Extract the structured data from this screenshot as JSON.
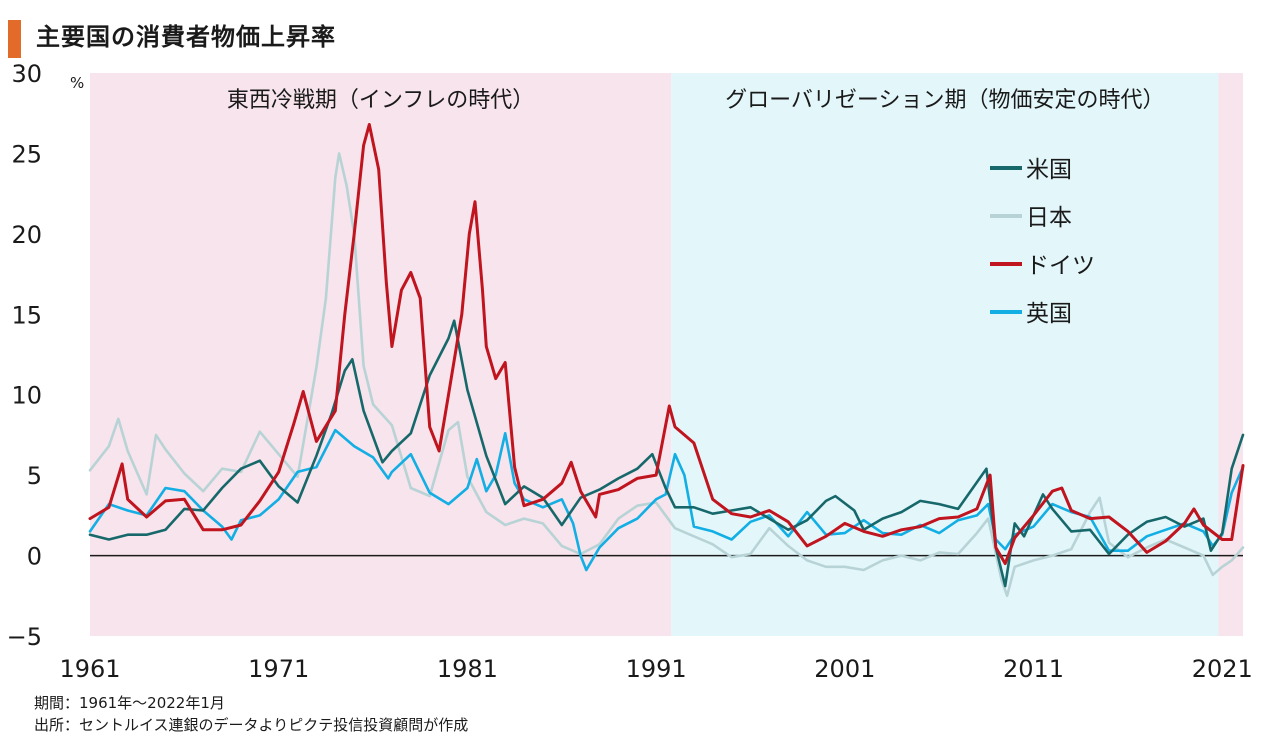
{
  "title": "主要国の消費者物価上昇率",
  "footnotes": {
    "period": "期間：1961年～2022年1月",
    "source": "出所：セントルイス連銀のデータよりピクテ投信投資顧問が作成"
  },
  "colors": {
    "title_accent": "#e26b2a",
    "cold_war_bg": "#f7e4ec",
    "globalization_bg": "#e3f7fb",
    "us": "#17686b",
    "japan": "#b8d3d6",
    "germany": "#c0141e",
    "uk": "#12aee4",
    "zero_line": "#1a1a1a"
  },
  "chart_data": {
    "type": "line",
    "title": "主要国の消費者物価上昇率",
    "ylabel": "%",
    "xlabel": "",
    "ylim": [
      -5,
      30
    ],
    "xlim": [
      1961,
      2022.1
    ],
    "yticks": [
      30,
      25,
      20,
      15,
      10,
      5,
      0,
      -5
    ],
    "ytick_labels": [
      "30",
      "25",
      "20",
      "15",
      "10",
      "5",
      "0",
      "−5"
    ],
    "xticks": [
      1961,
      1971,
      1981,
      1991,
      2001,
      2011,
      2021
    ],
    "xtick_labels": [
      "1961",
      "1971",
      "1981",
      "1991",
      "2001",
      "2011",
      "2021"
    ],
    "grid": false,
    "legend_position": "top-right",
    "periods": [
      {
        "label": "東西冷戦期（インフレの時代）",
        "start": 1961,
        "end": 1991.8,
        "color": "#f7e4ec"
      },
      {
        "label": "グローバリゼーション期（物価安定の時代）",
        "start": 1991.8,
        "end": 2020.8,
        "color": "#e3f7fb"
      },
      {
        "label": "",
        "start": 2020.8,
        "end": 2022.1,
        "color": "#f7e4ec"
      }
    ],
    "series": [
      {
        "name": "米国",
        "color": "#17686b",
        "points": [
          [
            1961,
            1.3
          ],
          [
            1962,
            1.0
          ],
          [
            1963,
            1.3
          ],
          [
            1964,
            1.3
          ],
          [
            1965,
            1.6
          ],
          [
            1966,
            2.9
          ],
          [
            1967,
            2.8
          ],
          [
            1968,
            4.2
          ],
          [
            1969,
            5.4
          ],
          [
            1970,
            5.9
          ],
          [
            1971,
            4.3
          ],
          [
            1972,
            3.3
          ],
          [
            1973,
            6.2
          ],
          [
            1973.8,
            8.8
          ],
          [
            1974.5,
            11.5
          ],
          [
            1974.9,
            12.2
          ],
          [
            1975.5,
            9.0
          ],
          [
            1976.5,
            5.8
          ],
          [
            1977,
            6.5
          ],
          [
            1978,
            7.6
          ],
          [
            1979,
            11.2
          ],
          [
            1980,
            13.5
          ],
          [
            1980.3,
            14.6
          ],
          [
            1981,
            10.3
          ],
          [
            1982,
            6.2
          ],
          [
            1983,
            3.2
          ],
          [
            1984,
            4.3
          ],
          [
            1985,
            3.6
          ],
          [
            1986,
            1.9
          ],
          [
            1987,
            3.6
          ],
          [
            1988,
            4.1
          ],
          [
            1989,
            4.8
          ],
          [
            1990,
            5.4
          ],
          [
            1990.8,
            6.3
          ],
          [
            1991.5,
            4.2
          ],
          [
            1992,
            3.0
          ],
          [
            1993,
            3.0
          ],
          [
            1994,
            2.6
          ],
          [
            1995,
            2.8
          ],
          [
            1996,
            3.0
          ],
          [
            1997,
            2.3
          ],
          [
            1998,
            1.6
          ],
          [
            1999,
            2.2
          ],
          [
            2000,
            3.4
          ],
          [
            2000.5,
            3.7
          ],
          [
            2001.5,
            2.8
          ],
          [
            2002,
            1.6
          ],
          [
            2003,
            2.3
          ],
          [
            2004,
            2.7
          ],
          [
            2005,
            3.4
          ],
          [
            2006,
            3.2
          ],
          [
            2007,
            2.9
          ],
          [
            2008.5,
            5.4
          ],
          [
            2009,
            0.5
          ],
          [
            2009.5,
            -1.9
          ],
          [
            2010,
            2.0
          ],
          [
            2010.5,
            1.2
          ],
          [
            2011.5,
            3.8
          ],
          [
            2012,
            2.9
          ],
          [
            2013,
            1.5
          ],
          [
            2014,
            1.6
          ],
          [
            2015,
            0.1
          ],
          [
            2016,
            1.3
          ],
          [
            2017,
            2.1
          ],
          [
            2018,
            2.4
          ],
          [
            2019,
            1.8
          ],
          [
            2020,
            2.3
          ],
          [
            2020.4,
            0.3
          ],
          [
            2021,
            1.4
          ],
          [
            2021.5,
            5.4
          ],
          [
            2022.1,
            7.5
          ]
        ]
      },
      {
        "name": "日本",
        "color": "#b8d3d6",
        "points": [
          [
            1961,
            5.3
          ],
          [
            1962,
            6.8
          ],
          [
            1962.5,
            8.5
          ],
          [
            1963,
            6.5
          ],
          [
            1964,
            3.8
          ],
          [
            1964.5,
            7.5
          ],
          [
            1965,
            6.6
          ],
          [
            1966,
            5.1
          ],
          [
            1967,
            4.0
          ],
          [
            1968,
            5.4
          ],
          [
            1969,
            5.2
          ],
          [
            1970,
            7.7
          ],
          [
            1971,
            6.3
          ],
          [
            1972,
            4.9
          ],
          [
            1973,
            11.7
          ],
          [
            1973.5,
            16.0
          ],
          [
            1974,
            23.5
          ],
          [
            1974.2,
            25.0
          ],
          [
            1974.6,
            23.0
          ],
          [
            1975,
            20.0
          ],
          [
            1975.5,
            11.8
          ],
          [
            1976,
            9.4
          ],
          [
            1977,
            8.1
          ],
          [
            1978,
            4.2
          ],
          [
            1979,
            3.7
          ],
          [
            1980,
            7.8
          ],
          [
            1980.5,
            8.3
          ],
          [
            1981,
            4.9
          ],
          [
            1982,
            2.7
          ],
          [
            1983,
            1.9
          ],
          [
            1984,
            2.3
          ],
          [
            1985,
            2.0
          ],
          [
            1986,
            0.6
          ],
          [
            1987,
            0.1
          ],
          [
            1988,
            0.7
          ],
          [
            1989,
            2.3
          ],
          [
            1990,
            3.1
          ],
          [
            1991,
            3.3
          ],
          [
            1992,
            1.7
          ],
          [
            1993,
            1.2
          ],
          [
            1994,
            0.7
          ],
          [
            1995,
            -0.1
          ],
          [
            1996,
            0.1
          ],
          [
            1997,
            1.7
          ],
          [
            1998,
            0.6
          ],
          [
            1999,
            -0.3
          ],
          [
            2000,
            -0.7
          ],
          [
            2001,
            -0.7
          ],
          [
            2002,
            -0.9
          ],
          [
            2003,
            -0.3
          ],
          [
            2004,
            0.0
          ],
          [
            2005,
            -0.3
          ],
          [
            2006,
            0.2
          ],
          [
            2007,
            0.1
          ],
          [
            2008,
            1.4
          ],
          [
            2008.6,
            2.3
          ],
          [
            2009.3,
            -1.5
          ],
          [
            2009.6,
            -2.5
          ],
          [
            2010,
            -0.7
          ],
          [
            2011,
            -0.3
          ],
          [
            2012,
            0.0
          ],
          [
            2013,
            0.4
          ],
          [
            2014,
            2.7
          ],
          [
            2014.5,
            3.6
          ],
          [
            2015,
            0.8
          ],
          [
            2016,
            -0.1
          ],
          [
            2017,
            0.5
          ],
          [
            2018,
            1.0
          ],
          [
            2019,
            0.5
          ],
          [
            2020,
            0.0
          ],
          [
            2020.5,
            -1.2
          ],
          [
            2021,
            -0.7
          ],
          [
            2021.5,
            -0.3
          ],
          [
            2022.1,
            0.5
          ]
        ]
      },
      {
        "name": "ドイツ",
        "color": "#c0141e",
        "points": [
          [
            1961,
            2.3
          ],
          [
            1962,
            3.0
          ],
          [
            1962.7,
            5.7
          ],
          [
            1963,
            3.5
          ],
          [
            1964,
            2.4
          ],
          [
            1965,
            3.4
          ],
          [
            1966,
            3.5
          ],
          [
            1967,
            1.6
          ],
          [
            1968,
            1.6
          ],
          [
            1969,
            1.9
          ],
          [
            1970,
            3.4
          ],
          [
            1971,
            5.2
          ],
          [
            1971.8,
            8.2
          ],
          [
            1972.3,
            10.2
          ],
          [
            1973,
            7.1
          ],
          [
            1974,
            9.0
          ],
          [
            1974.5,
            15.0
          ],
          [
            1975,
            20.0
          ],
          [
            1975.5,
            25.5
          ],
          [
            1975.8,
            26.8
          ],
          [
            1976.3,
            24.0
          ],
          [
            1976.7,
            17.0
          ],
          [
            1977,
            13.0
          ],
          [
            1977.5,
            16.5
          ],
          [
            1978,
            17.6
          ],
          [
            1978.5,
            16.0
          ],
          [
            1979,
            8.0
          ],
          [
            1979.5,
            6.5
          ],
          [
            1980,
            10.0
          ],
          [
            1980.7,
            15.0
          ],
          [
            1981.1,
            20.0
          ],
          [
            1981.4,
            22.0
          ],
          [
            1981.8,
            16.5
          ],
          [
            1982,
            13.0
          ],
          [
            1982.5,
            11.0
          ],
          [
            1983,
            12.0
          ],
          [
            1983.5,
            5.5
          ],
          [
            1984,
            3.1
          ],
          [
            1985,
            3.5
          ],
          [
            1986,
            4.5
          ],
          [
            1986.5,
            5.8
          ],
          [
            1987,
            4.0
          ],
          [
            1987.8,
            2.4
          ],
          [
            1988,
            3.8
          ],
          [
            1989,
            4.1
          ],
          [
            1990,
            4.8
          ],
          [
            1991,
            5.0
          ],
          [
            1991.7,
            9.3
          ],
          [
            1992,
            8.0
          ],
          [
            1993,
            7.0
          ],
          [
            1994,
            3.5
          ],
          [
            1995,
            2.6
          ],
          [
            1996,
            2.4
          ],
          [
            1997,
            2.8
          ],
          [
            1998,
            2.1
          ],
          [
            1999,
            0.6
          ],
          [
            2000,
            1.2
          ],
          [
            2001,
            2.0
          ],
          [
            2002,
            1.5
          ],
          [
            2003,
            1.2
          ],
          [
            2004,
            1.6
          ],
          [
            2005,
            1.8
          ],
          [
            2006,
            2.3
          ],
          [
            2007,
            2.4
          ],
          [
            2008,
            2.9
          ],
          [
            2008.7,
            5.0
          ],
          [
            2009,
            0.5
          ],
          [
            2009.5,
            -0.5
          ],
          [
            2010,
            1.1
          ],
          [
            2011,
            2.5
          ],
          [
            2012,
            4.0
          ],
          [
            2012.5,
            4.2
          ],
          [
            2013,
            2.8
          ],
          [
            2014,
            2.3
          ],
          [
            2015,
            2.4
          ],
          [
            2016,
            1.5
          ],
          [
            2017,
            0.2
          ],
          [
            2018,
            0.9
          ],
          [
            2019,
            2.0
          ],
          [
            2019.5,
            2.9
          ],
          [
            2020,
            1.9
          ],
          [
            2021,
            1.0
          ],
          [
            2021.5,
            1.0
          ],
          [
            2022.1,
            5.6
          ]
        ]
      },
      {
        "name": "英国",
        "color": "#12aee4",
        "points": [
          [
            1961,
            1.5
          ],
          [
            1962,
            3.2
          ],
          [
            1963,
            2.8
          ],
          [
            1964,
            2.5
          ],
          [
            1965,
            4.2
          ],
          [
            1966,
            4.0
          ],
          [
            1967,
            2.8
          ],
          [
            1968,
            1.8
          ],
          [
            1968.5,
            1.0
          ],
          [
            1969,
            2.2
          ],
          [
            1970,
            2.5
          ],
          [
            1971,
            3.5
          ],
          [
            1972,
            5.2
          ],
          [
            1973,
            5.5
          ],
          [
            1974,
            7.8
          ],
          [
            1975,
            6.8
          ],
          [
            1976,
            6.1
          ],
          [
            1976.8,
            4.8
          ],
          [
            1977,
            5.2
          ],
          [
            1978,
            6.3
          ],
          [
            1979,
            3.9
          ],
          [
            1980,
            3.2
          ],
          [
            1981,
            4.2
          ],
          [
            1981.5,
            6.0
          ],
          [
            1982,
            4.0
          ],
          [
            1982.5,
            5.0
          ],
          [
            1983,
            7.6
          ],
          [
            1983.5,
            4.5
          ],
          [
            1984,
            3.5
          ],
          [
            1985,
            3.0
          ],
          [
            1986,
            3.5
          ],
          [
            1986.6,
            2.0
          ],
          [
            1987,
            0.0
          ],
          [
            1987.3,
            -0.9
          ],
          [
            1988,
            0.5
          ],
          [
            1989,
            1.7
          ],
          [
            1990,
            2.3
          ],
          [
            1991,
            3.5
          ],
          [
            1991.5,
            3.8
          ],
          [
            1992,
            6.3
          ],
          [
            1992.5,
            5.0
          ],
          [
            1993,
            1.8
          ],
          [
            1994,
            1.5
          ],
          [
            1995,
            1.0
          ],
          [
            1996,
            2.1
          ],
          [
            1997,
            2.5
          ],
          [
            1998,
            1.2
          ],
          [
            1999,
            2.7
          ],
          [
            2000,
            1.3
          ],
          [
            2001,
            1.4
          ],
          [
            2002,
            2.2
          ],
          [
            2003,
            1.4
          ],
          [
            2004,
            1.3
          ],
          [
            2005,
            1.9
          ],
          [
            2006,
            1.4
          ],
          [
            2007,
            2.2
          ],
          [
            2008,
            2.5
          ],
          [
            2008.6,
            3.2
          ],
          [
            2009,
            1.0
          ],
          [
            2009.5,
            0.4
          ],
          [
            2010,
            1.3
          ],
          [
            2011,
            1.8
          ],
          [
            2012,
            3.2
          ],
          [
            2013,
            2.7
          ],
          [
            2014,
            2.4
          ],
          [
            2015,
            0.3
          ],
          [
            2016,
            0.3
          ],
          [
            2017,
            1.2
          ],
          [
            2018,
            1.6
          ],
          [
            2019,
            2.0
          ],
          [
            2020,
            1.5
          ],
          [
            2020.5,
            0.6
          ],
          [
            2021,
            1.3
          ],
          [
            2021.5,
            3.9
          ],
          [
            2022.1,
            5.5
          ]
        ]
      }
    ]
  }
}
